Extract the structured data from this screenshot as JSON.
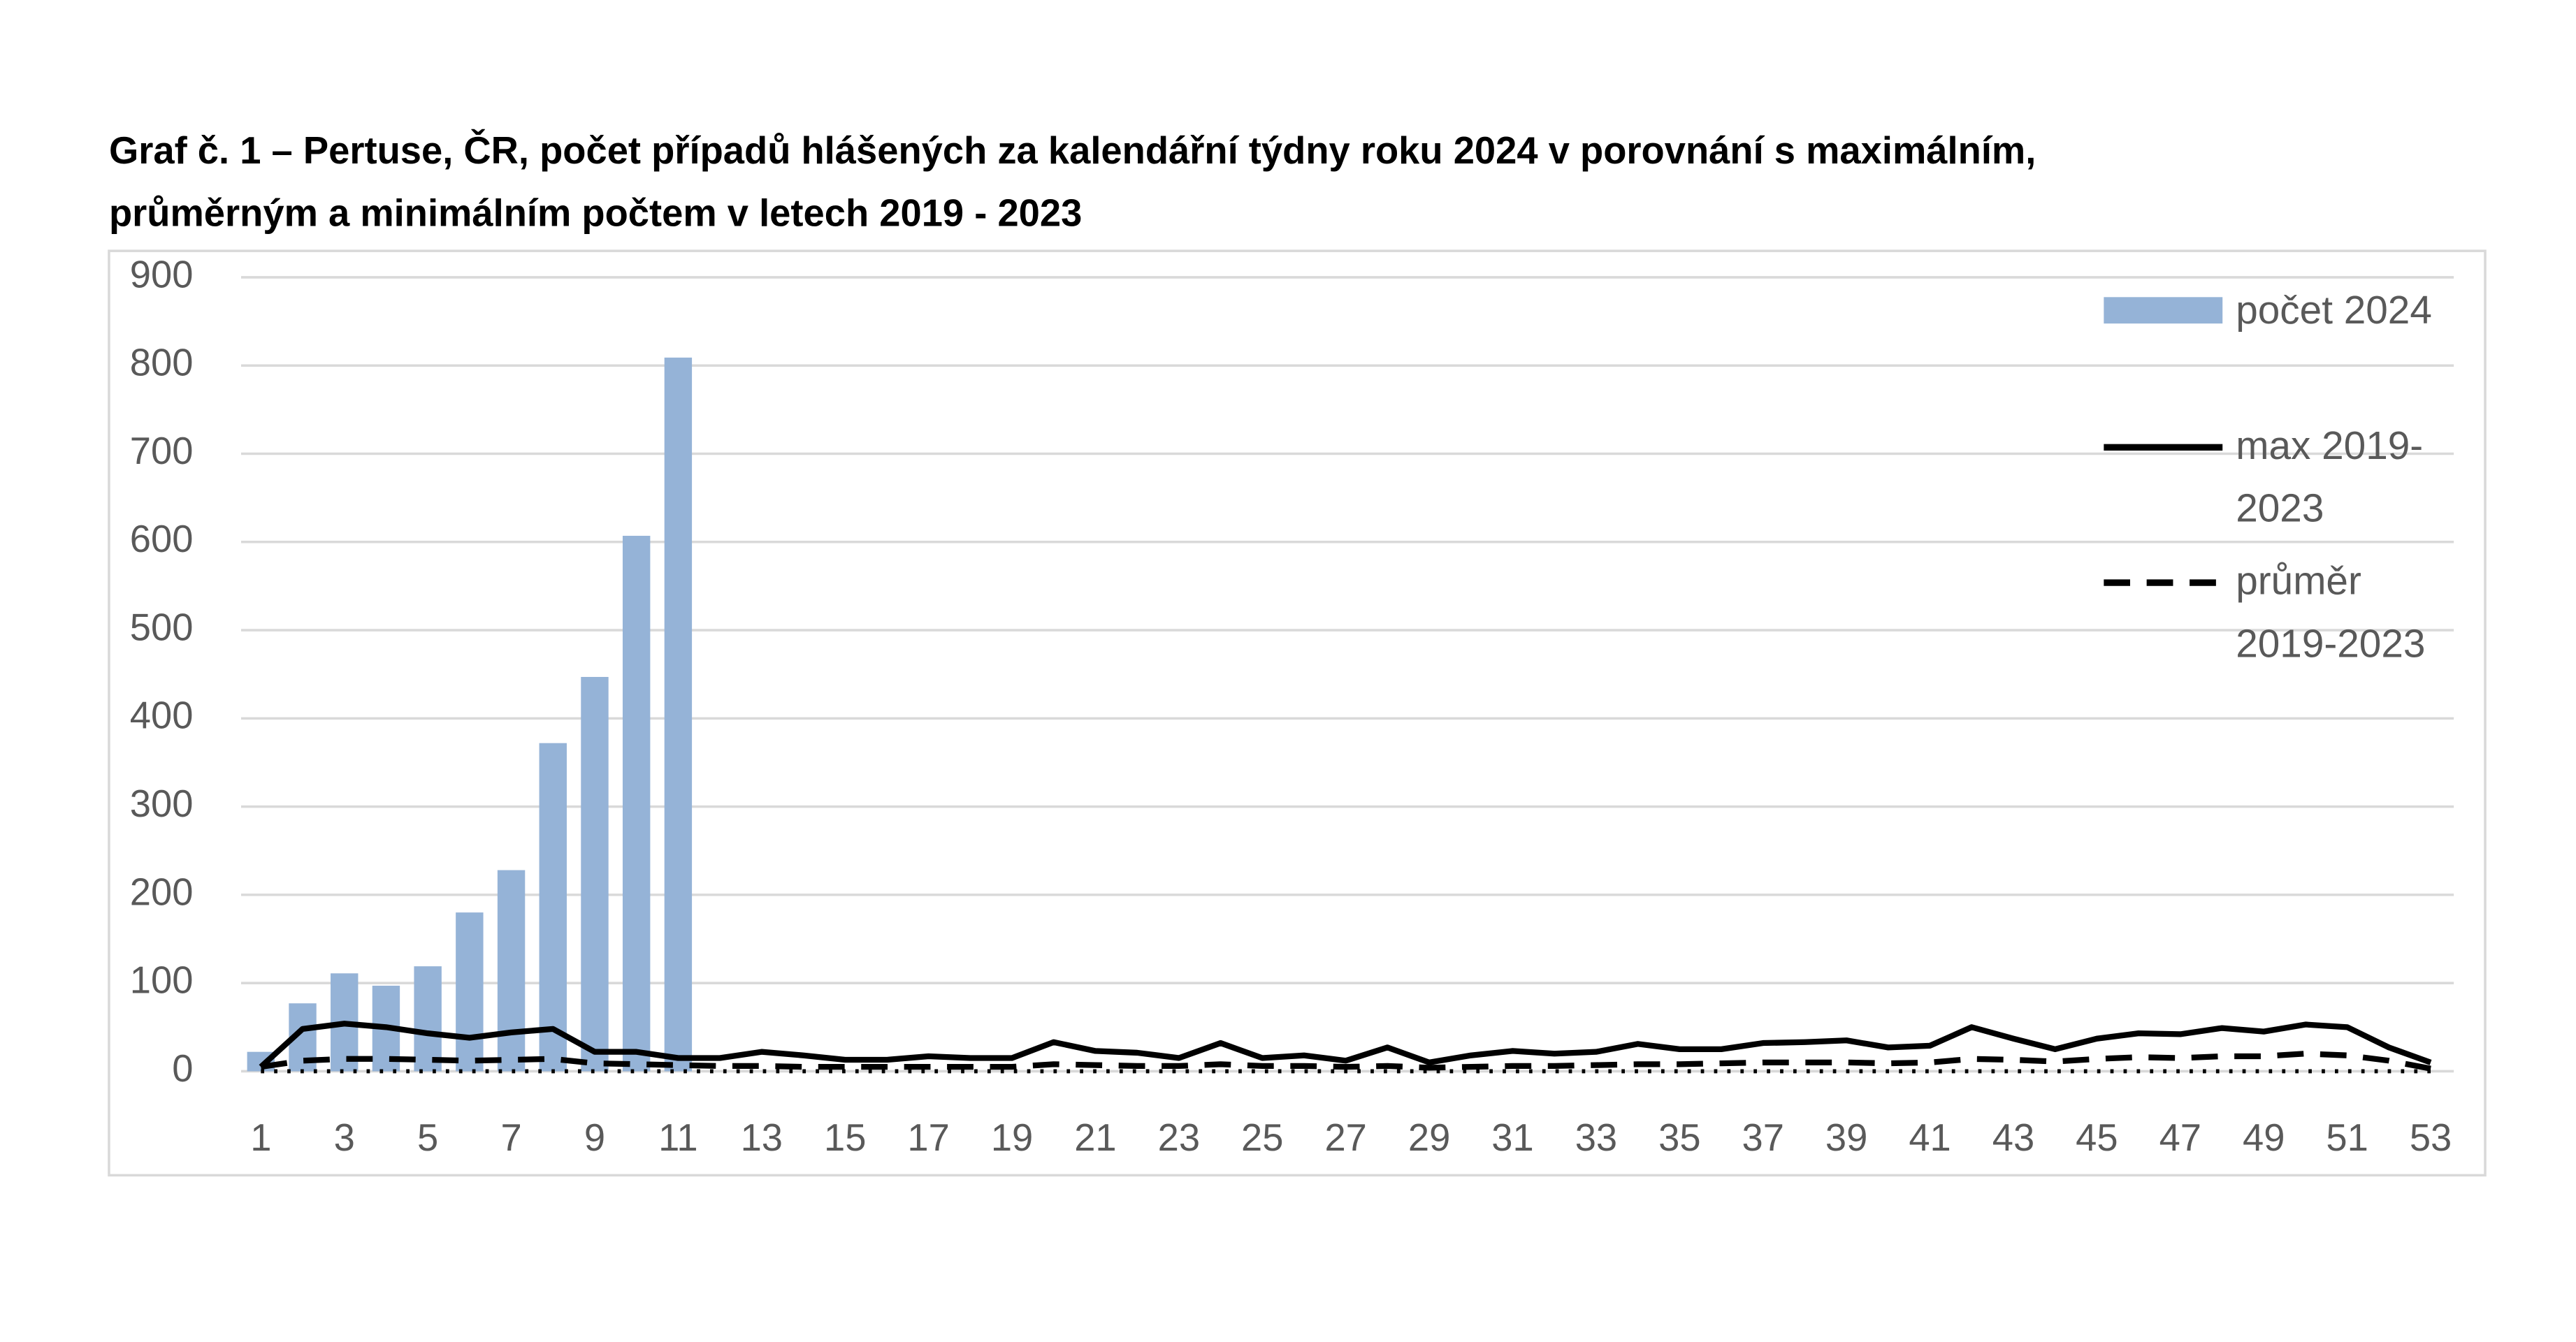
{
  "chart_data": {
    "type": "bar-line",
    "title": [
      "Graf č. 1 – Pertuse, ČR, počet případů hlášených za kalendářní týdny roku 2024 v porovnání s maximálním,",
      "průměrným a minimálním počtem v letech 2019 - 2023"
    ],
    "categories": [
      "1",
      null,
      "3",
      null,
      "5",
      null,
      "7",
      null,
      "9",
      null,
      "11",
      null,
      "13",
      null,
      "15",
      null,
      "17",
      null,
      "19",
      null,
      "21",
      null,
      "23",
      null,
      "25",
      null,
      "27",
      null,
      "29",
      null,
      "31",
      null,
      "33",
      null,
      "35",
      null,
      "37",
      null,
      "39",
      null,
      "41",
      null,
      "43",
      null,
      "45",
      null,
      "47",
      null,
      "49",
      null,
      "51",
      null,
      "53"
    ],
    "series": [
      {
        "name": "počet 2024",
        "kind": "bar",
        "color": "#95b3d7",
        "values": [
          22,
          77,
          111,
          97,
          119,
          180,
          228,
          372,
          447,
          607,
          809,
          null,
          null,
          null,
          null,
          null,
          null,
          null,
          null,
          null,
          null,
          null,
          null,
          null,
          null,
          null,
          null,
          null,
          null,
          null,
          null,
          null,
          null,
          null,
          null,
          null,
          null,
          null,
          null,
          null,
          null,
          null,
          null,
          null,
          null,
          null,
          null,
          null,
          null,
          null,
          null,
          null,
          null
        ]
      },
      {
        "name": "max 2019-2023",
        "kind": "solid",
        "color": "#000000",
        "values": [
          5,
          48,
          54,
          50,
          43,
          38,
          44,
          48,
          22,
          22,
          15,
          15,
          22,
          18,
          13,
          13,
          17,
          15,
          15,
          33,
          23,
          21,
          15,
          32,
          15,
          18,
          12,
          27,
          10,
          18,
          23,
          20,
          22,
          31,
          25,
          25,
          32,
          33,
          35,
          27,
          29,
          50,
          37,
          25,
          37,
          43,
          42,
          49,
          45,
          53,
          50,
          27,
          10
        ]
      },
      {
        "name": "průměr 2019-2023",
        "kind": "dashed",
        "color": "#000000",
        "values": [
          5,
          12,
          14,
          14,
          13,
          12,
          13,
          14,
          9,
          8,
          7,
          6,
          6,
          5,
          5,
          5,
          5,
          5,
          5,
          8,
          7,
          6,
          6,
          8,
          6,
          6,
          5,
          6,
          4,
          5,
          6,
          6,
          7,
          8,
          8,
          9,
          10,
          10,
          10,
          9,
          10,
          14,
          13,
          11,
          14,
          16,
          15,
          17,
          17,
          20,
          18,
          12,
          3
        ]
      },
      {
        "kind": "dotted",
        "color": "#000000",
        "values": [
          0,
          0,
          0,
          0,
          0,
          0,
          0,
          0,
          0,
          0,
          0,
          0,
          0,
          0,
          0,
          0,
          0,
          0,
          0,
          0,
          0,
          0,
          0,
          0,
          0,
          0,
          0,
          0,
          0,
          0,
          0,
          0,
          0,
          0,
          0,
          0,
          0,
          0,
          0,
          0,
          0,
          0,
          0,
          0,
          0,
          0,
          0,
          0,
          0,
          0,
          0,
          0,
          0
        ]
      }
    ],
    "ylim": [
      0,
      900
    ],
    "yticks": [
      0,
      100,
      200,
      300,
      400,
      500,
      600,
      700,
      800,
      900
    ],
    "grid": true
  }
}
